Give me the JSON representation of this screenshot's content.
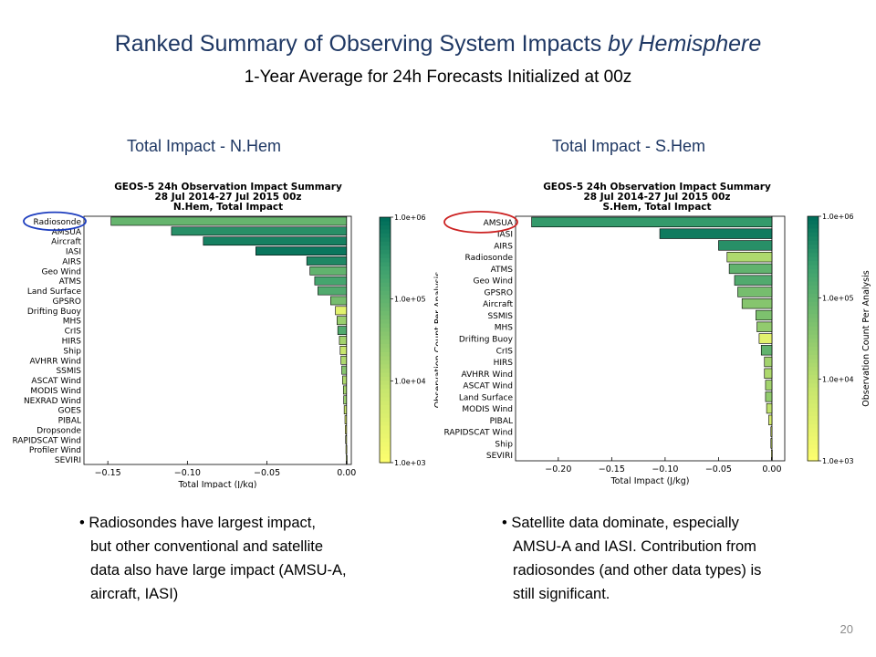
{
  "slide": {
    "title_main": "Ranked Summary of Observing System Impacts ",
    "title_italic": "by Hemisphere",
    "subtitle": "1-Year Average for 24h Forecasts Initialized at 00z",
    "page_number": "20",
    "title_color": "#1f3864"
  },
  "left": {
    "panel_label": "Total Impact - N.Hem",
    "bullet_lines": [
      "Radiosondes have largest impact,",
      "but other conventional and satellite",
      "data also have large impact (AMSU-A,",
      "aircraft, IASI)"
    ],
    "highlight_color": "#1f3fbf"
  },
  "right": {
    "panel_label": "Total Impact - S.Hem",
    "bullet_lines": [
      "Satellite data dominate, especially",
      "AMSU-A and IASI.  Contribution from",
      "radiosondes (and other data types) is",
      "still significant."
    ],
    "highlight_color": "#cc2222"
  },
  "chart_data": [
    {
      "type": "bar",
      "orientation": "horizontal",
      "title_lines": [
        "GEOS-5 24h Observation Impact Summary",
        "28 Jul 2014-27 Jul 2015 00z",
        "N.Hem, Total Impact"
      ],
      "xlabel": "Total Impact (J/kg)",
      "colorbar_label": "Observation Count Per Analysis",
      "colorbar_ticks": [
        "1.0e+06",
        "1.0e+05",
        "1.0e+04",
        "1.0e+03"
      ],
      "colorbar_scale": "log",
      "xlim": [
        -0.165,
        0.003
      ],
      "xticks": [
        -0.15,
        -0.1,
        -0.05,
        0.0
      ],
      "xtick_labels": [
        "−0.15",
        "−0.10",
        "−0.05",
        "0.00"
      ],
      "highlighted": "Radiosonde",
      "categories": [
        "Radiosonde",
        "AMSUA",
        "Aircraft",
        "IASI",
        "AIRS",
        "Geo Wind",
        "ATMS",
        "Land Surface",
        "GPSRO",
        "Drifting Buoy",
        "MHS",
        "CrIS",
        "HIRS",
        "Ship",
        "AVHRR Wind",
        "SSMIS",
        "ASCAT Wind",
        "MODIS Wind",
        "NEXRAD Wind",
        "GOES",
        "PIBAL",
        "Dropsonde",
        "RAPIDSCAT Wind",
        "Profiler Wind",
        "SEVIRI"
      ],
      "values": [
        -0.148,
        -0.11,
        -0.09,
        -0.057,
        -0.025,
        -0.023,
        -0.02,
        -0.018,
        -0.01,
        -0.007,
        -0.006,
        -0.0055,
        -0.0045,
        -0.004,
        -0.0035,
        -0.003,
        -0.0025,
        -0.002,
        -0.0018,
        -0.0015,
        -0.001,
        -0.0008,
        -0.0006,
        -0.0004,
        -0.0002
      ],
      "counts": [
        90000.0,
        400000.0,
        600000.0,
        800000.0,
        500000.0,
        100000.0,
        200000.0,
        150000.0,
        60000.0,
        3000.0,
        25000.0,
        150000.0,
        20000.0,
        8000.0,
        15000.0,
        40000.0,
        15000.0,
        20000.0,
        25000.0,
        8000.0,
        3000.0,
        1500.0,
        4000.0,
        3000.0,
        10000.0
      ]
    },
    {
      "type": "bar",
      "orientation": "horizontal",
      "title_lines": [
        "GEOS-5 24h Observation Impact Summary",
        "28 Jul 2014-27 Jul 2015 00z",
        "S.Hem, Total Impact"
      ],
      "xlabel": "Total Impact (J/kg)",
      "colorbar_label": "Observation Count Per Analysis",
      "colorbar_ticks": [
        "1.0e+06",
        "1.0e+05",
        "1.0e+04",
        "1.0e+03"
      ],
      "colorbar_scale": "log",
      "xlim": [
        -0.24,
        0.012
      ],
      "xticks": [
        -0.2,
        -0.15,
        -0.1,
        -0.05,
        0.0
      ],
      "xtick_labels": [
        "−0.20",
        "−0.15",
        "−0.10",
        "−0.05",
        "0.00"
      ],
      "highlighted": "AMSUA",
      "categories": [
        "AMSUA",
        "IASI",
        "AIRS",
        "Radiosonde",
        "ATMS",
        "Geo Wind",
        "GPSRO",
        "Aircraft",
        "SSMIS",
        "MHS",
        "Drifting Buoy",
        "CrIS",
        "HIRS",
        "AVHRR Wind",
        "ASCAT Wind",
        "Land Surface",
        "MODIS Wind",
        "PIBAL",
        "RAPIDSCAT Wind",
        "Ship",
        "SEVIRI"
      ],
      "values": [
        -0.225,
        -0.105,
        -0.05,
        -0.042,
        -0.04,
        -0.035,
        -0.032,
        -0.028,
        -0.015,
        -0.014,
        -0.012,
        -0.01,
        -0.007,
        -0.007,
        -0.006,
        -0.006,
        -0.005,
        -0.003,
        -0.001,
        -0.001,
        -0.0005
      ],
      "counts": [
        300000.0,
        700000.0,
        400000.0,
        15000.0,
        100000.0,
        150000.0,
        60000.0,
        40000.0,
        50000.0,
        30000.0,
        3000.0,
        100000.0,
        20000.0,
        15000.0,
        20000.0,
        30000.0,
        10000.0,
        5000.0,
        3000.0,
        5000.0,
        3000.0
      ]
    }
  ]
}
